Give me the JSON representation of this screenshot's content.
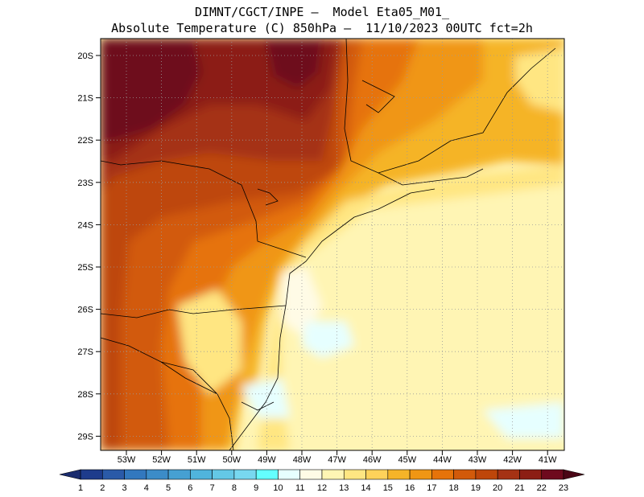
{
  "title": {
    "line1": "DIMNT/CGCT/INPE —  Model Eta05_M01_",
    "line2": "Absolute Temperature (C) 850hPa —  11/10/2023 00UTC fct=2h"
  },
  "map": {
    "lat_labels": [
      "20S",
      "21S",
      "22S",
      "23S",
      "24S",
      "25S",
      "26S",
      "27S",
      "28S",
      "29S"
    ],
    "lon_labels": [
      "53W",
      "52W",
      "51W",
      "50W",
      "49W",
      "48W",
      "47W",
      "46W",
      "45W",
      "44W",
      "43W",
      "42W",
      "41W"
    ]
  },
  "colorbar": {
    "labels": [
      "1",
      "2",
      "3",
      "4",
      "5",
      "6",
      "7",
      "8",
      "9",
      "10",
      "11",
      "12",
      "13",
      "14",
      "15",
      "16",
      "17",
      "18",
      "19",
      "20",
      "21",
      "22",
      "23"
    ],
    "colors": [
      "#1e3c8c",
      "#2a5aa8",
      "#3278be",
      "#3c8cc8",
      "#46a0d2",
      "#50b4dc",
      "#64c8e6",
      "#78d8f0",
      "#64ffff",
      "#e6ffff",
      "#fffbe6",
      "#fff5b4",
      "#ffe682",
      "#ffd25a",
      "#f5b428",
      "#f09614",
      "#e6730a",
      "#d25a0a",
      "#be460a",
      "#a53214",
      "#8c1e14",
      "#6e0a1e"
    ]
  }
}
